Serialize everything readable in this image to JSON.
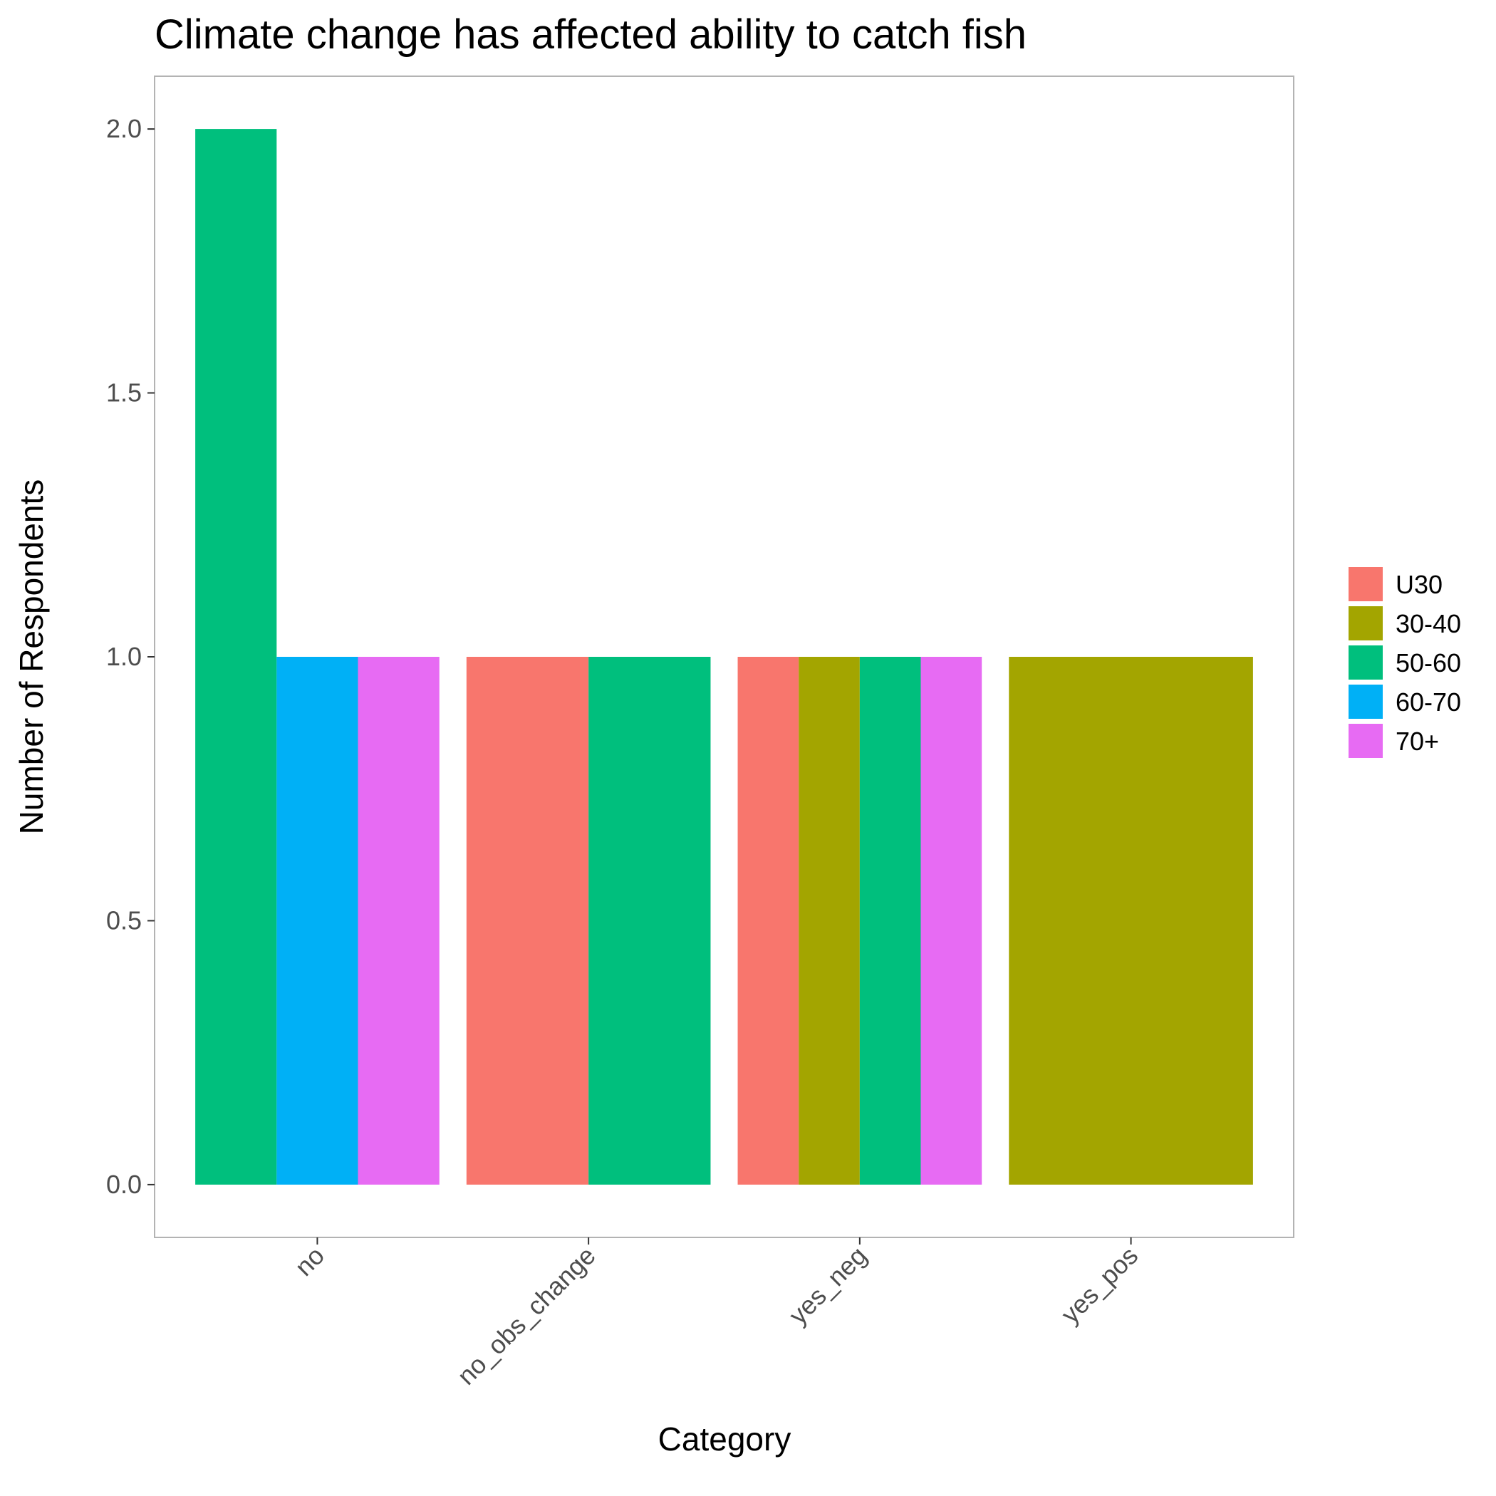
{
  "chart_data": {
    "type": "bar",
    "title": "Climate change has affected ability to catch fish",
    "xlabel": "Category",
    "ylabel": "Number of Respondents",
    "ylim": [
      -0.1,
      2.1
    ],
    "yticks": [
      "0.0",
      "0.5",
      "1.0",
      "1.5",
      "2.0"
    ],
    "grid": false,
    "legend_position": "right",
    "categories": [
      "no",
      "no_obs_change",
      "yes_neg",
      "yes_pos"
    ],
    "series": [
      {
        "name": "U30",
        "color": "#F8766D",
        "values": [
          null,
          1,
          1,
          null
        ]
      },
      {
        "name": "30-40",
        "color": "#A3A500",
        "values": [
          null,
          null,
          1,
          1
        ]
      },
      {
        "name": "50-60",
        "color": "#00BF7D",
        "values": [
          2,
          1,
          1,
          null
        ]
      },
      {
        "name": "60-70",
        "color": "#00B0F6",
        "values": [
          1,
          null,
          null,
          null
        ]
      },
      {
        "name": "70+",
        "color": "#E76BF3",
        "values": [
          1,
          null,
          1,
          null
        ]
      }
    ]
  }
}
